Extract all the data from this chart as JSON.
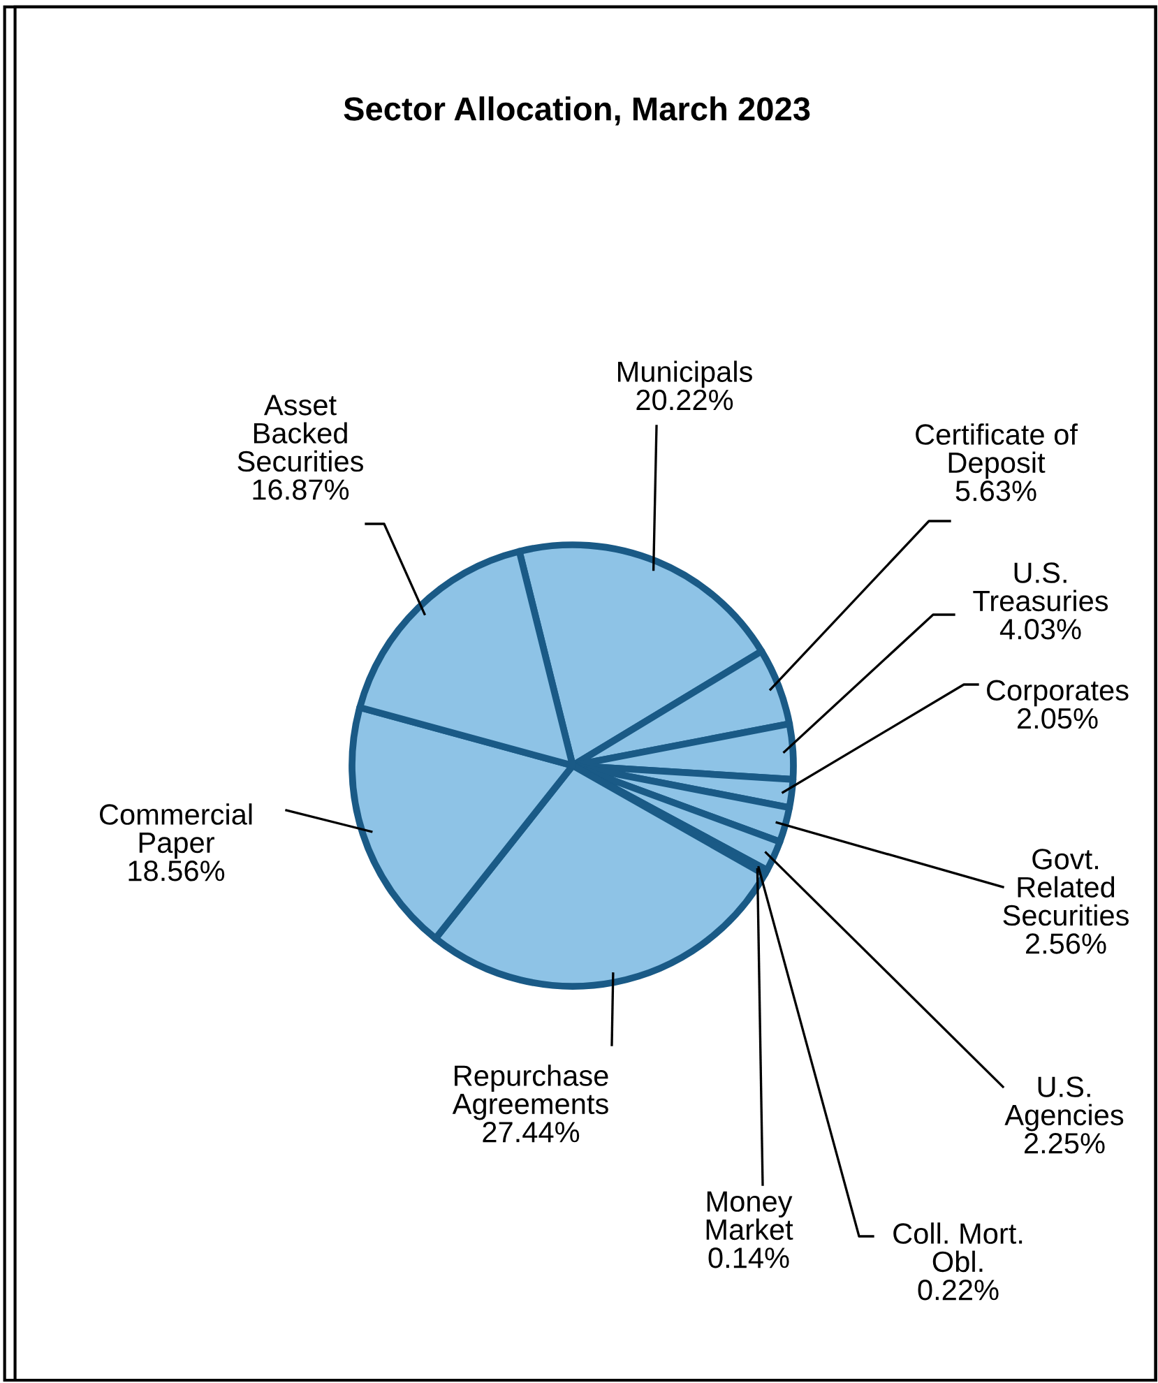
{
  "chart_data": {
    "type": "pie",
    "title": "Sector Allocation, March 2023",
    "categories": [
      "Municipals",
      "Certificate of\nDeposit",
      "U.S.\nTreasuries",
      "Corporates",
      "Govt.\nRelated\nSecurities",
      "U.S.\nAgencies",
      "Coll. Mort.\nObl.",
      "Money\nMarket",
      "Repurchase\nAgreements",
      "Commercial\nPaper",
      "Asset\nBacked\nSecurities"
    ],
    "values": [
      20.22,
      5.63,
      4.03,
      2.05,
      2.56,
      2.25,
      0.22,
      0.14,
      27.44,
      18.56,
      16.87
    ],
    "value_labels": [
      "20.22%",
      "5.63%",
      "4.03%",
      "2.05%",
      "2.56%",
      "2.25%",
      "0.22%",
      "0.14%",
      "27.44%",
      "18.56%",
      "16.87%"
    ],
    "colors": [
      "#8ec3e6",
      "#8ec3e6",
      "#8ec3e6",
      "#8ec3e6",
      "#8ec3e6",
      "#8ec3e6",
      "#8ec3e6",
      "#8ec3e6",
      "#8ec3e6",
      "#8ec3e6",
      "#8ec3e6"
    ],
    "legend": false
  }
}
